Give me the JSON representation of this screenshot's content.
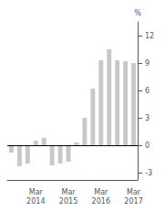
{
  "chart_data": {
    "type": "bar",
    "categories": [
      null,
      null,
      null,
      "Mar\n2014",
      null,
      null,
      null,
      "Mar\n2015",
      null,
      null,
      null,
      "Mar\n2016",
      null,
      null,
      null,
      "Mar\n2017"
    ],
    "values": [
      -0.8,
      -2.3,
      -2.0,
      0.5,
      0.8,
      -2.2,
      -2.0,
      -1.8,
      0.3,
      3.0,
      6.2,
      9.3,
      10.5,
      9.3,
      9.2,
      9.0
    ],
    "color": "#c8c8c8",
    "ylabel": "%",
    "ylim": [
      -3.8,
      13.5
    ],
    "yticks": [
      -3,
      0,
      3,
      6,
      9,
      12
    ],
    "grid": false
  }
}
